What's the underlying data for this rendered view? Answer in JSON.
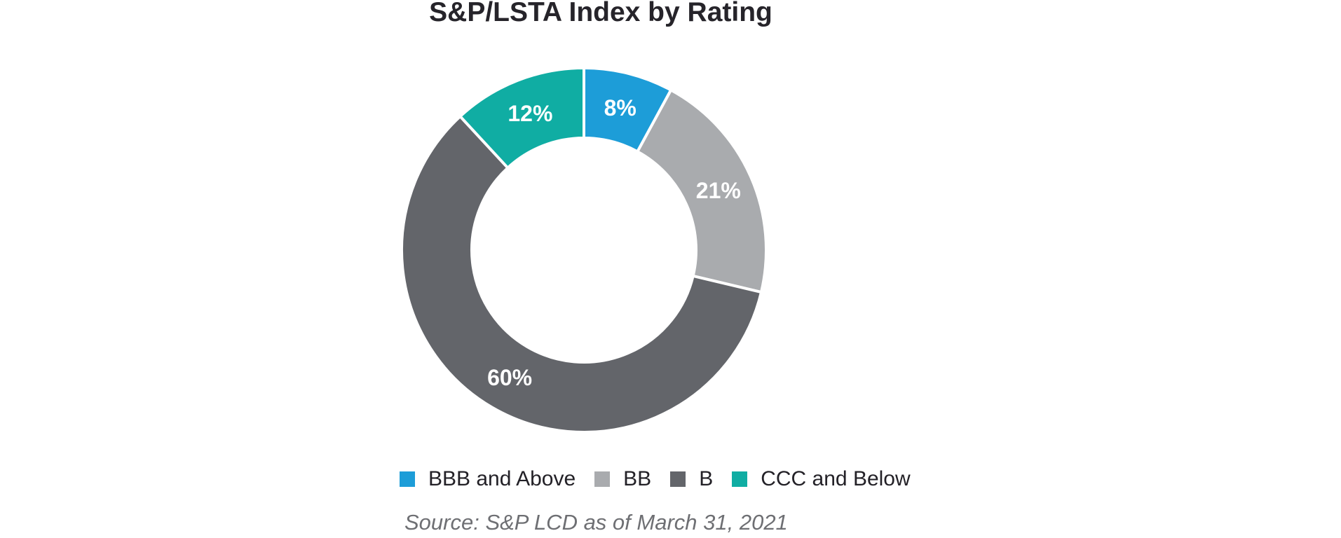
{
  "chart_data": {
    "type": "pie",
    "subtype": "donut",
    "title": "S&P/LSTA Index by Rating",
    "categories": [
      "BBB and Above",
      "BB",
      "B",
      "CCC and Below"
    ],
    "values": [
      8,
      21,
      60,
      12
    ],
    "unit": "%",
    "start_angle_deg": 0,
    "direction": "clockwise",
    "legend_position": "bottom",
    "data_labels": "inside, white, percent",
    "segments": [
      {
        "label": "BBB and Above",
        "value": 8,
        "display": "8%",
        "color": "#1d9dd8"
      },
      {
        "label": "BB",
        "value": 21,
        "display": "21%",
        "color": "#a9abae"
      },
      {
        "label": "B",
        "value": 60,
        "display": "60%",
        "color": "#63656a"
      },
      {
        "label": "CCC and Below",
        "value": 12,
        "display": "12%",
        "color": "#10ada3"
      }
    ],
    "colors": {
      "divider": "#ffffff",
      "label_text": "#ffffff",
      "title_text": "#26242a",
      "source_text": "#6e6f73",
      "legend_text": "#232127",
      "background": "#ffffff"
    }
  },
  "source": {
    "text": "Source: S&P LCD as of March 31, 2021"
  }
}
